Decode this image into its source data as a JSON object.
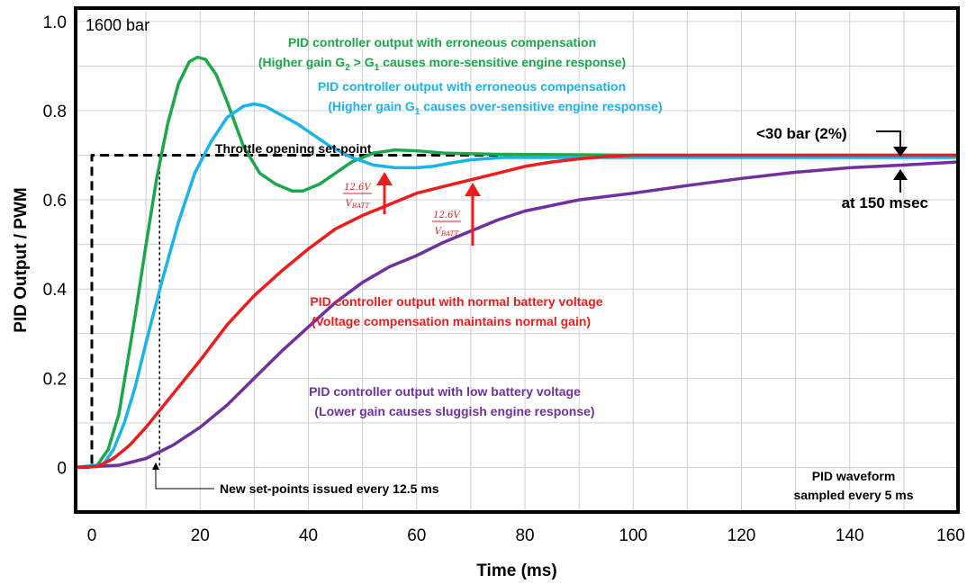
{
  "chart_data": {
    "type": "line",
    "xlabel": "Time (ms)",
    "ylabel": "PID Output / PWM",
    "xlim": [
      -3,
      160
    ],
    "ylim": [
      -0.1,
      1.03
    ],
    "x_ticks": [
      "0",
      "20",
      "40",
      "60",
      "80",
      "100",
      "120",
      "140",
      "160"
    ],
    "y_ticks": [
      "0",
      "0.2",
      "0.4",
      "0.6",
      "0.8",
      "1.0"
    ],
    "grid": true,
    "corner_label": "1600 bar",
    "series": [
      {
        "name": "Throttle opening set-point",
        "color": "#000000",
        "style": "dashed",
        "points": [
          [
            -2,
            0
          ],
          [
            0,
            0
          ],
          [
            0,
            0.7
          ],
          [
            160,
            0.7
          ]
        ]
      },
      {
        "name": "New set-points issued every 12.5 ms",
        "color": "#000000",
        "style": "dotted",
        "points": [
          [
            12.5,
            0.7
          ],
          [
            12.5,
            0
          ]
        ]
      },
      {
        "name": "PID controller output with erroneous compensation (Higher gain G2 > G1 causes more-sensitive engine response)",
        "color": "#1aa84a",
        "style": "solid",
        "points": [
          [
            -3,
            0
          ],
          [
            1,
            0.005
          ],
          [
            3,
            0.04
          ],
          [
            5,
            0.12
          ],
          [
            8,
            0.34
          ],
          [
            10,
            0.5
          ],
          [
            12,
            0.65
          ],
          [
            14,
            0.77
          ],
          [
            16,
            0.86
          ],
          [
            18,
            0.91
          ],
          [
            19.5,
            0.92
          ],
          [
            21,
            0.915
          ],
          [
            23,
            0.88
          ],
          [
            25,
            0.82
          ],
          [
            28,
            0.72
          ],
          [
            31,
            0.66
          ],
          [
            34,
            0.635
          ],
          [
            37,
            0.62
          ],
          [
            39,
            0.62
          ],
          [
            42,
            0.635
          ],
          [
            45,
            0.66
          ],
          [
            48,
            0.685
          ],
          [
            52,
            0.705
          ],
          [
            56,
            0.712
          ],
          [
            60,
            0.71
          ],
          [
            65,
            0.705
          ],
          [
            75,
            0.702
          ],
          [
            100,
            0.7
          ],
          [
            160,
            0.7
          ]
        ]
      },
      {
        "name": "PID controller output with erroneous compensation (Higher gain G1 causes over-sensitive engine response)",
        "color": "#1ab4ec",
        "style": "solid",
        "points": [
          [
            -3,
            0
          ],
          [
            2,
            0.005
          ],
          [
            4,
            0.04
          ],
          [
            6,
            0.1
          ],
          [
            8,
            0.18
          ],
          [
            10,
            0.28
          ],
          [
            13,
            0.42
          ],
          [
            16,
            0.55
          ],
          [
            19,
            0.66
          ],
          [
            22,
            0.73
          ],
          [
            25,
            0.785
          ],
          [
            28,
            0.81
          ],
          [
            30,
            0.815
          ],
          [
            32,
            0.81
          ],
          [
            35,
            0.79
          ],
          [
            38,
            0.77
          ],
          [
            41,
            0.745
          ],
          [
            44,
            0.72
          ],
          [
            48,
            0.695
          ],
          [
            52,
            0.678
          ],
          [
            56,
            0.672
          ],
          [
            60,
            0.672
          ],
          [
            63,
            0.675
          ],
          [
            66,
            0.682
          ],
          [
            70,
            0.69
          ],
          [
            76,
            0.695
          ],
          [
            85,
            0.695
          ],
          [
            100,
            0.695
          ],
          [
            160,
            0.695
          ]
        ]
      },
      {
        "name": "PID controller output with normal battery voltage (Voltage compensation maintains normal gain)",
        "color": "#ee1c1c",
        "style": "solid",
        "points": [
          [
            -3,
            0
          ],
          [
            1,
            0.002
          ],
          [
            4,
            0.02
          ],
          [
            7,
            0.05
          ],
          [
            10,
            0.09
          ],
          [
            15,
            0.165
          ],
          [
            20,
            0.24
          ],
          [
            25,
            0.32
          ],
          [
            30,
            0.385
          ],
          [
            35,
            0.44
          ],
          [
            40,
            0.49
          ],
          [
            45,
            0.535
          ],
          [
            50,
            0.565
          ],
          [
            55,
            0.59
          ],
          [
            60,
            0.615
          ],
          [
            65,
            0.63
          ],
          [
            70,
            0.645
          ],
          [
            75,
            0.66
          ],
          [
            80,
            0.675
          ],
          [
            85,
            0.685
          ],
          [
            90,
            0.692
          ],
          [
            95,
            0.697
          ],
          [
            100,
            0.7
          ],
          [
            110,
            0.7
          ],
          [
            160,
            0.7
          ]
        ]
      },
      {
        "name": "PID controller output with low battery voltage (Lower gain causes sluggish engine response)",
        "color": "#7030a0",
        "style": "solid",
        "points": [
          [
            -3,
            0
          ],
          [
            5,
            0.005
          ],
          [
            10,
            0.02
          ],
          [
            15,
            0.05
          ],
          [
            20,
            0.09
          ],
          [
            25,
            0.14
          ],
          [
            30,
            0.2
          ],
          [
            35,
            0.26
          ],
          [
            40,
            0.315
          ],
          [
            45,
            0.37
          ],
          [
            50,
            0.415
          ],
          [
            55,
            0.45
          ],
          [
            60,
            0.475
          ],
          [
            65,
            0.505
          ],
          [
            70,
            0.53
          ],
          [
            75,
            0.555
          ],
          [
            80,
            0.575
          ],
          [
            90,
            0.6
          ],
          [
            100,
            0.615
          ],
          [
            110,
            0.632
          ],
          [
            120,
            0.648
          ],
          [
            130,
            0.662
          ],
          [
            140,
            0.672
          ],
          [
            150,
            0.678
          ],
          [
            160,
            0.685
          ]
        ]
      }
    ],
    "annotations": {
      "green_line1": "PID controller output with erroneous compensation",
      "green_line2_pre": "(Higher gain G",
      "green_line2_sub1": "2",
      "green_line2_mid": " > G",
      "green_line2_sub2": "1",
      "green_line2_post": " causes more-sensitive engine response)",
      "blue_line1": "PID controller output with erroneous compensation",
      "blue_line2_pre": "(Higher gain G",
      "blue_line2_sub": "1",
      "blue_line2_post": " causes over-sensitive engine response)",
      "setpoint_label": "Throttle opening set-point",
      "tolerance_label": "<30 bar (2%)",
      "time_label": "at 150 msec",
      "red_line1": "PID controller output with normal battery voltage",
      "red_line2": "(Voltage compensation maintains normal gain)",
      "purple_line1": "PID controller output with low battery voltage",
      "purple_line2": "(Lower gain causes sluggish engine response)",
      "setpoints_note": "New set-points issued every 12.5 ms",
      "sample_line1": "PID waveform",
      "sample_line2": "sampled every 5 ms",
      "frac_num": "12.6V",
      "frac_den_pre": "V",
      "frac_den_sub": "BATT"
    },
    "colors": {
      "green": "#1aa84a",
      "blue": "#1ab4ec",
      "red": "#ee1c1c",
      "purple": "#7030a0",
      "black": "#000000"
    }
  }
}
